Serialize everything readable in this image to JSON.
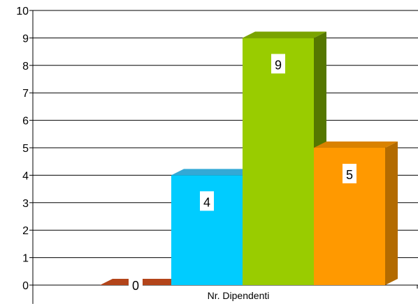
{
  "chart_data": {
    "type": "bar",
    "categories": [
      "Nr. Dipendenti"
    ],
    "series": [
      {
        "values": [
          0
        ],
        "color": "#993300",
        "side_color": "#6b2400",
        "top_color": "#b3441a"
      },
      {
        "values": [
          4
        ],
        "color": "#00ccff",
        "side_color": "#0099cc",
        "top_color": "#33a9d6"
      },
      {
        "values": [
          9
        ],
        "color": "#99cc00",
        "side_color": "#557700",
        "top_color": "#7aa300"
      },
      {
        "values": [
          5
        ],
        "color": "#ff9900",
        "side_color": "#b36b00",
        "top_color": "#d98200"
      }
    ],
    "data_labels": [
      "0",
      "4",
      "9",
      "5"
    ],
    "xlabel": "",
    "ylabel": "",
    "ylim": [
      0,
      10
    ],
    "yticks": [
      "0",
      "1",
      "2",
      "3",
      "4",
      "5",
      "6",
      "7",
      "8",
      "9",
      "10"
    ],
    "grid": true,
    "legend": "none",
    "three_d": true
  }
}
